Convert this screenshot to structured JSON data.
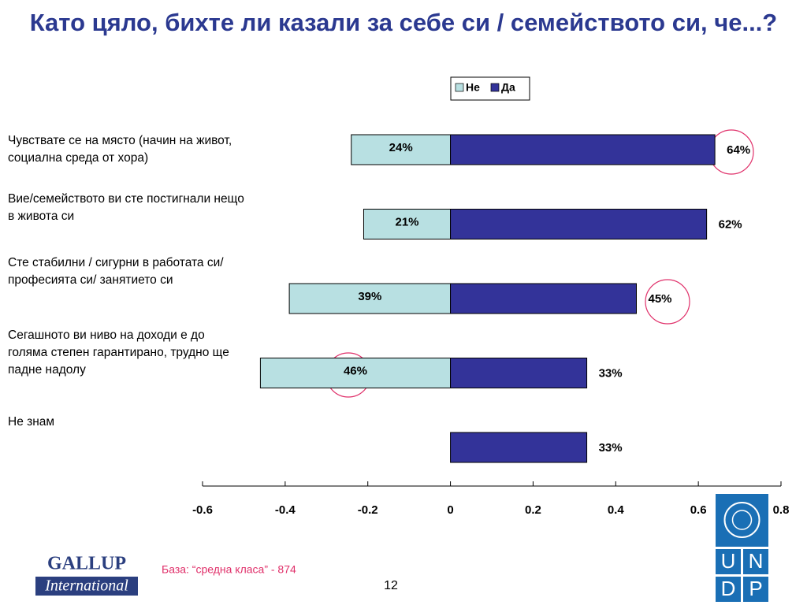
{
  "chart_data": {
    "type": "diverging-bar",
    "title": "Като цяло, бихте ли казали за себе си / семейството си, че...?",
    "categories": [
      "Чувствате се на място (начин на живот, социална среда от хора)",
      "Вие/семейството ви сте постигнали нещо в живота си",
      "Сте стабилни / сигурни в работата си/ професията си/ занятието си",
      "Сегашното ви ниво на доходи е до голяма степен гарантирано, трудно ще падне надолу",
      "Не знам"
    ],
    "series": [
      {
        "name": "Не",
        "color": "#b8e0e2",
        "values": [
          -0.24,
          -0.21,
          -0.39,
          -0.46,
          null
        ],
        "value_labels": [
          "24%",
          "21%",
          "39%",
          "46%",
          null
        ]
      },
      {
        "name": "Да",
        "color": "#333399",
        "values": [
          0.64,
          0.62,
          0.45,
          0.33,
          0.33
        ],
        "value_labels": [
          "64%",
          "62%",
          "45%",
          "33%",
          "33%"
        ]
      }
    ],
    "xlim": [
      -0.6,
      0.8
    ],
    "xticks": [
      -0.6,
      -0.4,
      -0.2,
      0,
      0.2,
      0.4,
      0.6,
      0.8
    ],
    "legend": "top"
  },
  "footer": {
    "base": "База: “средна класа” - 874",
    "page": "12",
    "logo_left": [
      "GALLUP",
      "International"
    ],
    "logo_right": [
      "U",
      "N",
      "D",
      "P"
    ]
  }
}
